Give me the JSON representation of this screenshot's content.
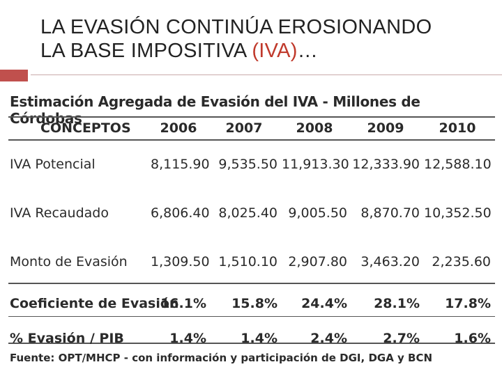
{
  "slide": {
    "title_line1": "LA EVASIÓN CONTINÚA EROSIONANDO",
    "title_line2_main": "LA BASE IMPOSITIVA ",
    "title_line2_accent": "(IVA)",
    "title_line2_end": "…",
    "accent_color": "#c0392b",
    "bar_color": "#c0504d"
  },
  "table": {
    "title": "Estimación Agregada de Evasión del IVA - Millones de Córdobas",
    "headers": [
      "CONCEPTOS",
      "2006",
      "2007",
      "2008",
      "2009",
      "2010"
    ],
    "rows": [
      {
        "label": "IVA Potencial",
        "values": [
          "8,115.90",
          "9,535.50",
          "11,913.30",
          "12,333.90",
          "12,588.10"
        ]
      },
      {
        "label": "IVA Recaudado",
        "values": [
          "6,806.40",
          "8,025.40",
          "9,005.50",
          "8,870.70",
          "10,352.50"
        ]
      },
      {
        "label": "Monto de Evasión",
        "values": [
          "1,309.50",
          "1,510.10",
          "2,907.80",
          "3,463.20",
          "2,235.60"
        ]
      },
      {
        "label": "Coeficiente de Evasión",
        "values": [
          "16.1%",
          "15.8%",
          "24.4%",
          "28.1%",
          "17.8%"
        ]
      },
      {
        "label": "% Evasión / PIB",
        "values": [
          "1.4%",
          "1.4%",
          "2.4%",
          "2.7%",
          "1.6%"
        ]
      }
    ],
    "source": "Fuente: OPT/MHCP - con información y participación de DGI, DGA y BCN"
  }
}
